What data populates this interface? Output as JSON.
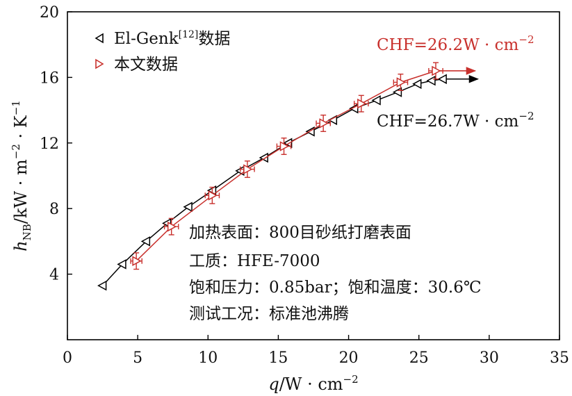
{
  "chart_data": {
    "type": "line",
    "xlim": [
      0,
      35
    ],
    "ylim": [
      0,
      20
    ],
    "xticks": [
      0,
      5,
      10,
      15,
      20,
      25,
      30,
      35
    ],
    "yticks": [
      4,
      8,
      12,
      16,
      20
    ],
    "xlabel": {
      "var": "q",
      "unit": "/W · cm",
      "exp": "−2"
    },
    "ylabel": {
      "var": "h",
      "sub": "NB",
      "unit": "/kW · m",
      "exp1": "−2",
      "mid": " · K",
      "exp2": "−1"
    },
    "grid": false,
    "legend_position": "top-left",
    "series": [
      {
        "name": "El-Genk",
        "name_sup": "[12]",
        "name_suffix": "数据",
        "color": "#000000",
        "marker": "triangle-left",
        "x": [
          2.5,
          3.9,
          5.6,
          7.1,
          8.6,
          10.3,
          12.3,
          14.0,
          15.7,
          17.3,
          18.9,
          20.4,
          22.0,
          23.5,
          24.9,
          25.9,
          26.7
        ],
        "y": [
          3.3,
          4.6,
          6.0,
          7.1,
          8.1,
          9.1,
          10.3,
          11.1,
          12.0,
          12.7,
          13.4,
          14.1,
          14.6,
          15.1,
          15.6,
          15.8,
          15.9
        ]
      },
      {
        "name": "本文数据",
        "color": "#c8302c",
        "marker": "triangle-right",
        "x": [
          4.9,
          7.4,
          10.3,
          12.8,
          15.4,
          18.2,
          20.9,
          23.7,
          26.2
        ],
        "y": [
          4.8,
          6.9,
          8.8,
          10.4,
          11.8,
          13.2,
          14.4,
          15.7,
          16.4
        ],
        "xerr": [
          0.4,
          0.5,
          0.5,
          0.5,
          0.5,
          0.5,
          0.5,
          0.5,
          0.5
        ],
        "yerr": [
          0.5,
          0.5,
          0.5,
          0.5,
          0.5,
          0.5,
          0.5,
          0.5,
          0.5
        ]
      }
    ],
    "annotations": [
      {
        "text": "CHF=26.2W · cm",
        "exp": "−2",
        "color": "#c8302c"
      },
      {
        "text": "CHF=26.7W · cm",
        "exp": "−2",
        "color": "#000000"
      }
    ],
    "arrows": [
      {
        "series": 1,
        "from": [
          26.2,
          16.4
        ],
        "to": [
          29.0,
          16.4
        ],
        "color": "#c8302c"
      },
      {
        "series": 0,
        "from": [
          26.7,
          15.9
        ],
        "to": [
          29.2,
          15.9
        ],
        "color": "#000000"
      }
    ],
    "notes": [
      "加热表面：800目砂纸打磨表面",
      "工质：HFE-7000",
      "饱和压力：0.85bar；饱和温度：30.6℃",
      "测试工况：标准池沸腾"
    ]
  }
}
